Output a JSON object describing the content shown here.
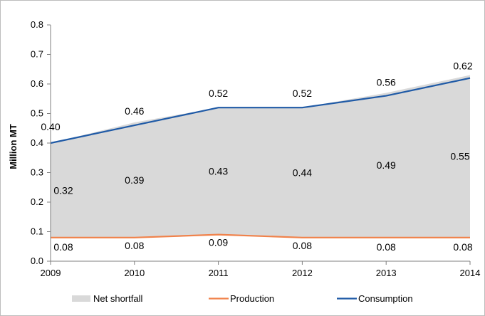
{
  "chart_data": {
    "type": "area",
    "x": [
      "2009",
      "2010",
      "2011",
      "2012",
      "2013",
      "2014"
    ],
    "ylabel": "Million MT",
    "xlabel": "",
    "ylim": [
      0,
      0.8
    ],
    "yticks": [
      "0.0",
      "0.1",
      "0.2",
      "0.3",
      "0.4",
      "0.5",
      "0.6",
      "0.7",
      "0.8"
    ],
    "grid": false,
    "legend": "bottom",
    "series": [
      {
        "name": "Net shortfall",
        "kind": "area",
        "color": "#d9d9d9",
        "values": [
          0.32,
          0.39,
          0.43,
          0.44,
          0.49,
          0.55
        ],
        "labels": [
          "0.32",
          "0.39",
          "0.43",
          "0.44",
          "0.49",
          "0.55"
        ]
      },
      {
        "name": "Production",
        "kind": "line",
        "color": "#f0824b",
        "values": [
          0.08,
          0.08,
          0.09,
          0.08,
          0.08,
          0.08
        ],
        "labels": [
          "0.08",
          "0.08",
          "0.09",
          "0.08",
          "0.08",
          "0.08"
        ]
      },
      {
        "name": "Consumption",
        "kind": "line",
        "color": "#1f5aa6",
        "values": [
          0.4,
          0.46,
          0.52,
          0.52,
          0.56,
          0.62
        ],
        "labels": [
          "0.40",
          "0.46",
          "0.52",
          "0.52",
          "0.56",
          "0.62"
        ]
      }
    ]
  }
}
